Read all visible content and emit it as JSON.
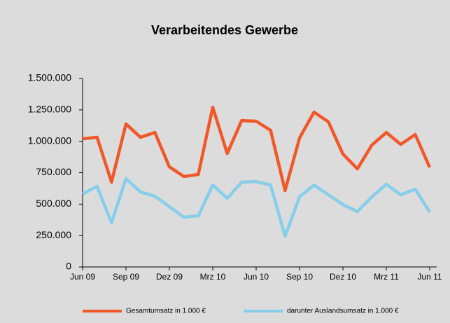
{
  "chart_data": {
    "type": "line",
    "title": "Verarbeitendes Gewerbe",
    "categories": [
      "Jun 09",
      null,
      null,
      "Sep 09",
      null,
      null,
      "Dez 09",
      null,
      null,
      "Mrz 10",
      null,
      null,
      "Jun 10",
      null,
      null,
      "Sep 10",
      null,
      null,
      "Dez 10",
      null,
      null,
      "Mrz 11",
      null,
      null,
      "Jun 11"
    ],
    "series": [
      {
        "name": "Gesamtumsatz in 1.000 €",
        "color": "#f0582a",
        "values": [
          1020000,
          1032000,
          675000,
          1138000,
          1032000,
          1070000,
          797000,
          720000,
          736000,
          1271000,
          903000,
          1165000,
          1160000,
          1087000,
          608000,
          1026000,
          1232000,
          1154000,
          898000,
          781000,
          970000,
          1070000,
          976000,
          1054000,
          792000
        ]
      },
      {
        "name": "darunter Auslandsumsatz in 1.000 €",
        "color": "#87ceeb",
        "values": [
          580000,
          641000,
          351000,
          703000,
          597000,
          563000,
          480000,
          396000,
          407000,
          652000,
          546000,
          675000,
          680000,
          652000,
          245000,
          558000,
          652000,
          574000,
          496000,
          440000,
          558000,
          658000,
          574000,
          619000,
          435000
        ]
      }
    ],
    "ylim": [
      0,
      1500000
    ],
    "yticks": [
      0,
      {
        "value": 250000,
        "label": "250.000"
      },
      {
        "value": 500000,
        "label": "500.000"
      },
      {
        "value": 750000,
        "label": "750.000"
      },
      {
        "value": 1000000,
        "label": "1.000.000"
      },
      {
        "value": 1250000,
        "label": "1.250.000"
      },
      {
        "value": 1500000,
        "label": "1.500.000"
      }
    ],
    "grid": false,
    "legend": "bottom"
  }
}
